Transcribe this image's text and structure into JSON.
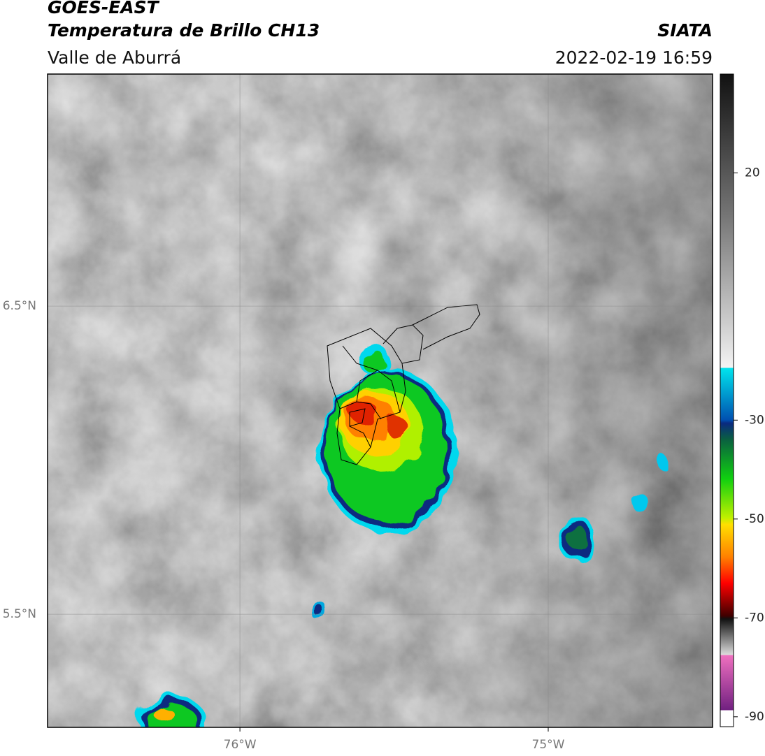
{
  "header": {
    "title": "GOES-EAST",
    "subtitle": "Temperatura de Brillo CH13",
    "region": "Valle de Aburrá",
    "source": "SIATA",
    "datetime": "2022-02-19 16:59"
  },
  "map": {
    "lon_lim": [
      -76.624,
      -74.467
    ],
    "lat_lim": [
      5.133,
      7.253
    ],
    "lon_ticks": [
      {
        "value": -76,
        "label": "76°W"
      },
      {
        "value": -75,
        "label": "75°W"
      }
    ],
    "lat_ticks": [
      {
        "value": 6.5,
        "label": "6.5°N"
      },
      {
        "value": 5.5,
        "label": "5.5°N"
      }
    ],
    "grid": true
  },
  "colorbar": {
    "lim": [
      -92,
      40
    ],
    "ticks": [
      20,
      -30,
      -50,
      -70,
      -90
    ]
  }
}
